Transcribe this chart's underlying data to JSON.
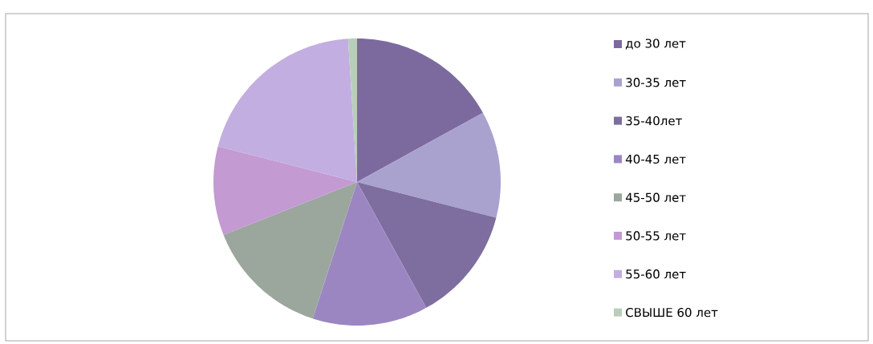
{
  "chart_data": {
    "type": "pie",
    "categories": [
      "до 30 лет",
      "30-35 лет",
      "35-40лет",
      "40-45 лет",
      "45-50 лет",
      "50-55 лет",
      "55-60 лет",
      "СВЫШЕ 60 лет"
    ],
    "values": [
      17,
      12,
      13,
      13,
      14,
      10,
      20,
      1
    ],
    "colors": [
      "#7c6a9e",
      "#a9a2cf",
      "#7d6e9f",
      "#9c86c2",
      "#9ba79d",
      "#c39ad2",
      "#c2aee0",
      "#b9ceba"
    ],
    "legend": "right"
  }
}
